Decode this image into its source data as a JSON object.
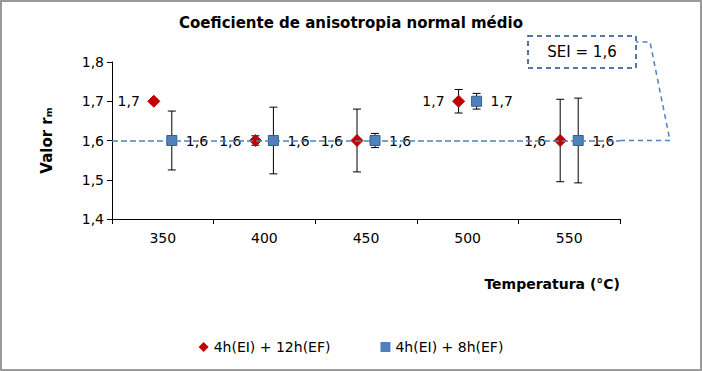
{
  "chart_data": {
    "type": "scatter",
    "title": "Coeficiente de anisotropia normal médio",
    "xlabel": "Temperatura (°C)",
    "ylabel": "Valor rₘ",
    "categories": [
      "350",
      "400",
      "450",
      "500",
      "550"
    ],
    "ylim": [
      1.4,
      1.8
    ],
    "yticks": [
      {
        "value": 1.4,
        "label": "1,4"
      },
      {
        "value": 1.5,
        "label": "1,5"
      },
      {
        "value": 1.6,
        "label": "1,6"
      },
      {
        "value": 1.7,
        "label": "1,7"
      },
      {
        "value": 1.8,
        "label": "1,8"
      }
    ],
    "grid": false,
    "legend": "bottom",
    "data_labels": true,
    "annotations": [
      {
        "text": "SEI = 1,6",
        "y": 1.6,
        "line_style": "dashed",
        "color": "#4f81bd"
      }
    ],
    "series": [
      {
        "name": "4h(EI) + 12h(EF)",
        "color": "#c00000",
        "marker": "diamond",
        "values": [
          1.7,
          1.6,
          1.6,
          1.7,
          1.6
        ],
        "value_labels": [
          "1,7",
          "1,6",
          "1,6",
          "1,7",
          "1,6"
        ],
        "errors": [
          0.005,
          0.012,
          0.08,
          0.03,
          0.105
        ]
      },
      {
        "name": "4h(EI) + 8h(EF)",
        "color": "#4f81bd",
        "marker": "square",
        "values": [
          1.6,
          1.6,
          1.6,
          1.7,
          1.6
        ],
        "value_labels": [
          "1,6",
          "1,6",
          "1,6",
          "1,7",
          "1,6"
        ],
        "errors": [
          0.075,
          0.085,
          0.018,
          0.02,
          0.108
        ]
      }
    ]
  }
}
